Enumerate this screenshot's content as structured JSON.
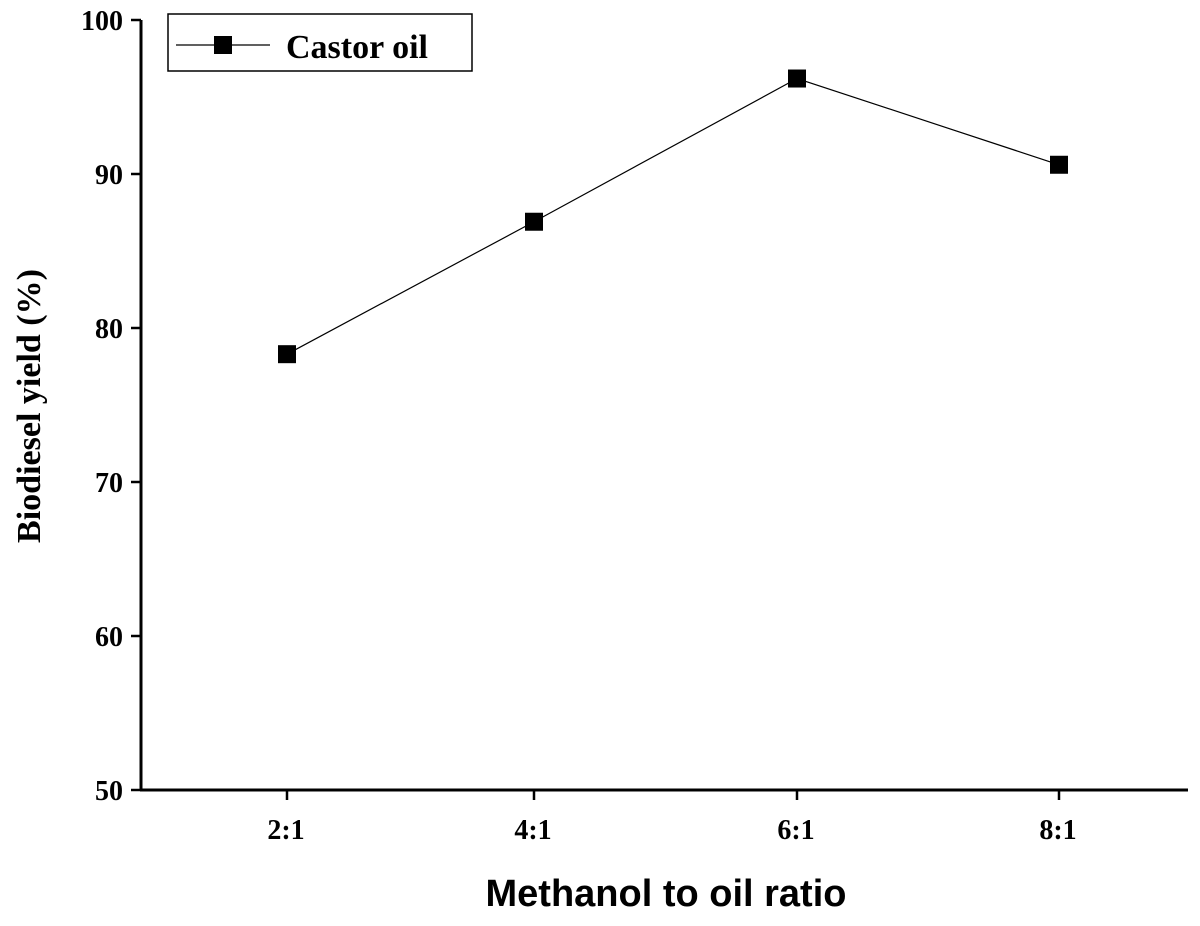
{
  "chart_data": {
    "type": "line",
    "xlabel": "Methanol to oil ratio",
    "ylabel": "Biodiesel yield (%)",
    "categories": [
      "2:1",
      "4:1",
      "6:1",
      "8:1"
    ],
    "series": [
      {
        "name": "Castor oil",
        "values": [
          78.3,
          86.9,
          96.2,
          90.6
        ],
        "color": "#000000",
        "marker": "square"
      }
    ],
    "ylim": [
      50,
      100
    ],
    "yticks": [
      "50",
      "60",
      "70",
      "80",
      "90",
      "100"
    ],
    "grid": false,
    "legend_position": "top-left"
  }
}
